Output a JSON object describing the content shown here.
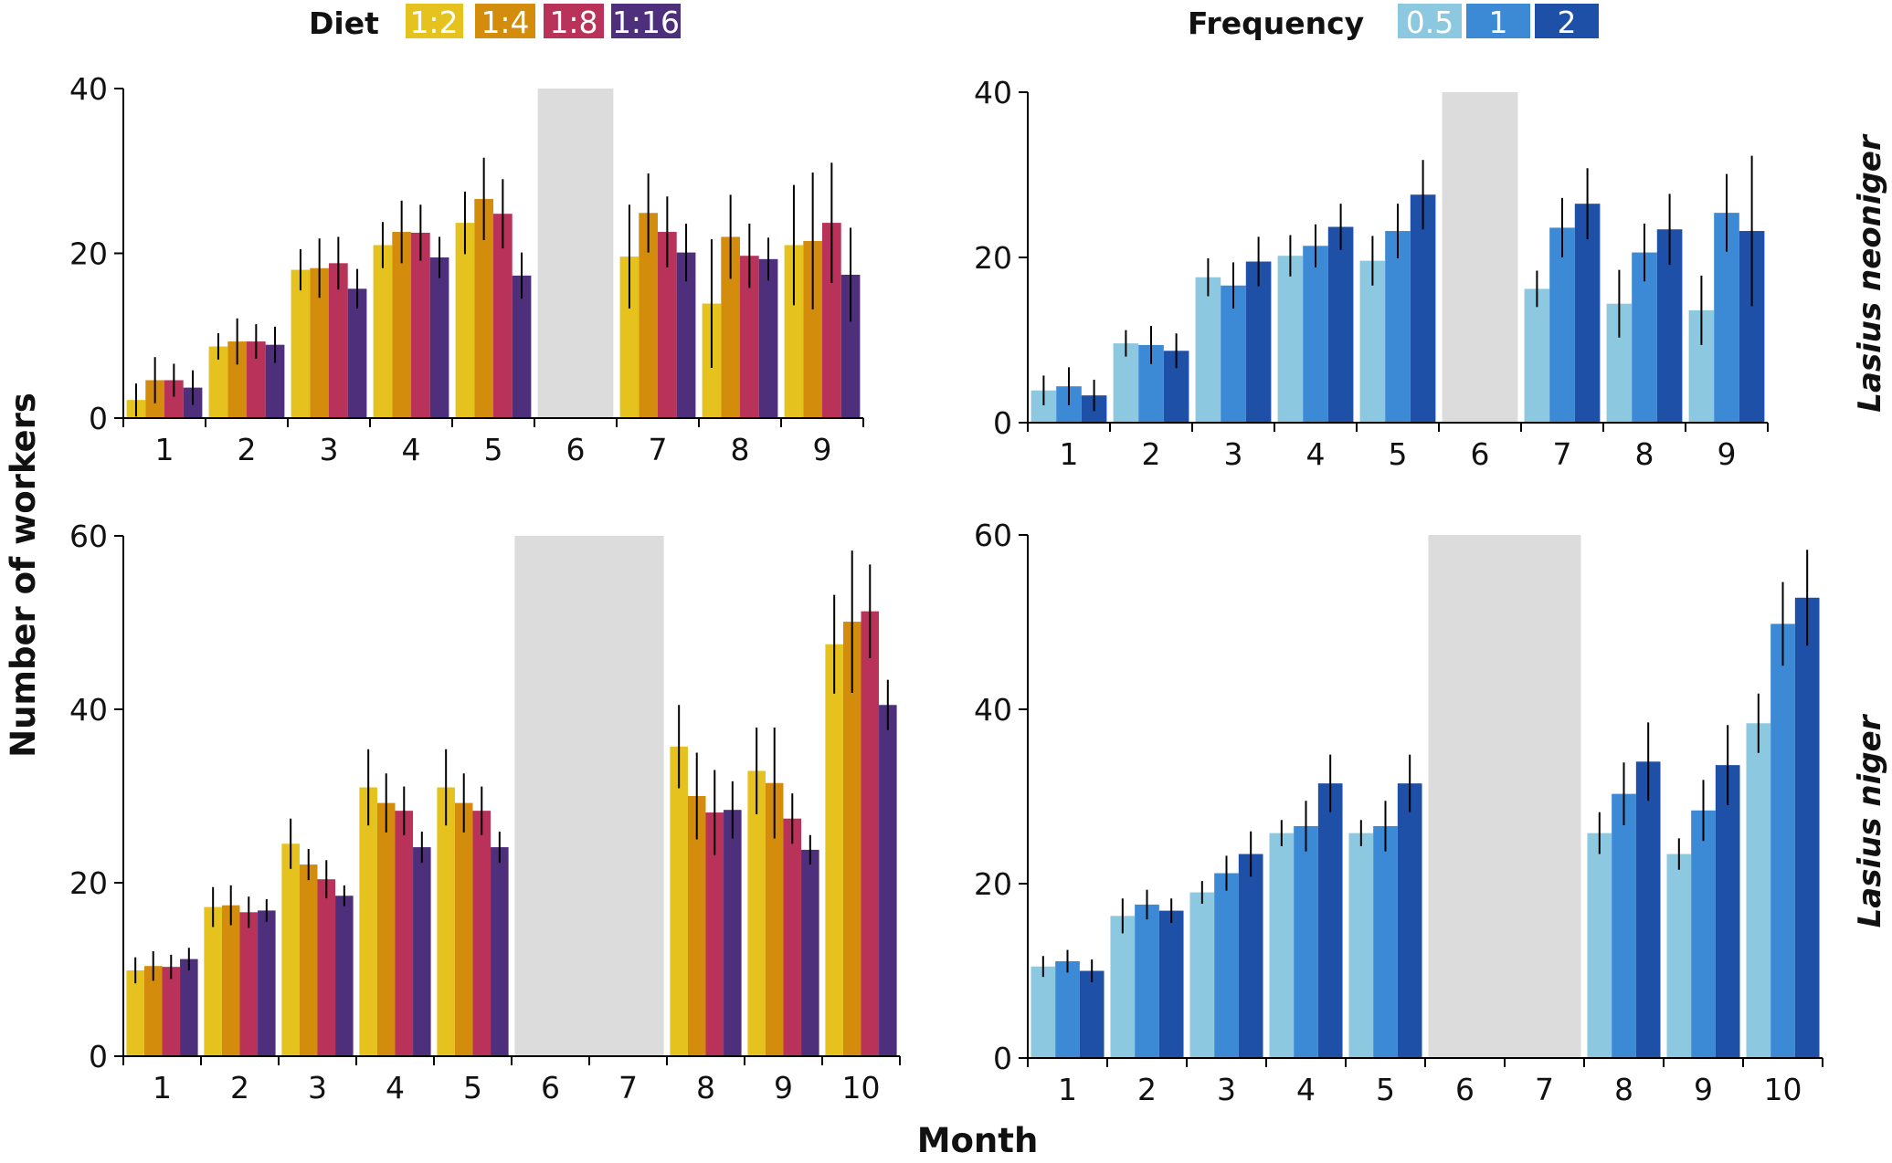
{
  "legends": {
    "diet": {
      "title": "Diet",
      "items": [
        {
          "label": "1:2",
          "color": "#E5C21D"
        },
        {
          "label": "1:4",
          "color": "#D48C0D"
        },
        {
          "label": "1:8",
          "color": "#B8325A"
        },
        {
          "label": "1:16",
          "color": "#4E2F7C"
        }
      ]
    },
    "frequency": {
      "title": "Frequency",
      "items": [
        {
          "label": "0.5",
          "color": "#8CC8E0"
        },
        {
          "label": "1",
          "color": "#3C8AD6"
        },
        {
          "label": "2",
          "color": "#1F50A8"
        }
      ]
    }
  },
  "ylabel": "Number of workers",
  "xlabel": "Month",
  "row_labels": [
    "Lasius neoniger",
    "Lasius niger"
  ],
  "missing_color": "#DCDCDC",
  "chart_data": [
    {
      "type": "bar",
      "categories": [
        "1",
        "2",
        "3",
        "4",
        "5",
        "6",
        "7",
        "8",
        "9"
      ],
      "missing_months": [
        "6"
      ],
      "ylim": [
        0,
        40
      ],
      "yticks": [
        0,
        20,
        40
      ],
      "series": [
        {
          "name": "1:2",
          "color": "#E5C21D",
          "values": [
            2.2,
            8.7,
            18.0,
            21.0,
            23.7,
            null,
            19.6,
            13.9,
            21.0
          ],
          "errors": [
            2.0,
            1.6,
            2.5,
            2.8,
            3.8,
            null,
            6.3,
            7.8,
            7.3
          ]
        },
        {
          "name": "1:4",
          "color": "#D48C0D",
          "values": [
            4.6,
            9.3,
            18.2,
            22.6,
            26.6,
            null,
            24.9,
            22.0,
            21.5
          ],
          "errors": [
            2.8,
            2.8,
            3.6,
            3.8,
            5.0,
            null,
            4.8,
            5.1,
            8.3
          ]
        },
        {
          "name": "1:8",
          "color": "#B8325A",
          "values": [
            4.6,
            9.3,
            18.8,
            22.5,
            24.8,
            null,
            22.6,
            19.7,
            23.7
          ],
          "errors": [
            2.0,
            2.1,
            3.2,
            3.4,
            4.2,
            null,
            4.3,
            3.9,
            7.3
          ]
        },
        {
          "name": "1:16",
          "color": "#4E2F7C",
          "values": [
            3.7,
            8.9,
            15.7,
            19.5,
            17.3,
            null,
            20.1,
            19.3,
            17.4
          ],
          "errors": [
            2.1,
            2.2,
            2.4,
            2.5,
            2.8,
            null,
            3.5,
            2.6,
            5.7
          ]
        }
      ]
    },
    {
      "type": "bar",
      "categories": [
        "1",
        "2",
        "3",
        "4",
        "5",
        "6",
        "7",
        "8",
        "9"
      ],
      "missing_months": [
        "6"
      ],
      "ylim": [
        0,
        40
      ],
      "yticks": [
        0,
        20,
        40
      ],
      "series": [
        {
          "name": "0.5",
          "color": "#8CC8E0",
          "values": [
            3.9,
            9.6,
            17.6,
            20.2,
            19.6,
            null,
            16.2,
            14.4,
            13.6
          ],
          "errors": [
            1.8,
            1.6,
            2.3,
            2.5,
            3.0,
            null,
            2.2,
            4.1,
            4.2
          ]
        },
        {
          "name": "1",
          "color": "#3C8AD6",
          "values": [
            4.4,
            9.4,
            16.6,
            21.4,
            23.2,
            null,
            23.6,
            20.6,
            25.4
          ],
          "errors": [
            2.3,
            2.3,
            2.8,
            2.6,
            3.3,
            null,
            3.6,
            3.5,
            4.7
          ]
        },
        {
          "name": "2",
          "color": "#1F50A8",
          "values": [
            3.3,
            8.7,
            19.5,
            23.7,
            27.6,
            null,
            26.5,
            23.4,
            23.2
          ],
          "errors": [
            1.9,
            2.1,
            3.0,
            2.8,
            4.2,
            null,
            4.3,
            4.3,
            9.1
          ]
        }
      ]
    },
    {
      "type": "bar",
      "categories": [
        "1",
        "2",
        "3",
        "4",
        "5",
        "6",
        "7",
        "8",
        "9",
        "10"
      ],
      "missing_months": [
        "6",
        "7"
      ],
      "ylim": [
        0,
        60
      ],
      "yticks": [
        0,
        20,
        40,
        60
      ],
      "series": [
        {
          "name": "1:2",
          "color": "#E5C21D",
          "values": [
            9.9,
            17.2,
            24.5,
            31.0,
            31.0,
            null,
            null,
            35.7,
            32.9,
            47.5
          ],
          "errors": [
            1.5,
            2.3,
            2.9,
            4.4,
            4.4,
            null,
            null,
            4.8,
            5.0,
            5.7
          ]
        },
        {
          "name": "1:4",
          "color": "#D48C0D",
          "values": [
            10.4,
            17.4,
            22.1,
            29.2,
            29.2,
            null,
            null,
            30.0,
            31.5,
            50.1
          ],
          "errors": [
            1.7,
            2.3,
            1.8,
            3.4,
            3.4,
            null,
            null,
            5.0,
            6.4,
            8.2
          ]
        },
        {
          "name": "1:8",
          "color": "#B8325A",
          "values": [
            10.3,
            16.6,
            20.4,
            28.3,
            28.3,
            null,
            null,
            28.1,
            27.4,
            51.3
          ],
          "errors": [
            1.4,
            1.8,
            2.2,
            2.8,
            2.8,
            null,
            null,
            4.9,
            2.9,
            5.4
          ]
        },
        {
          "name": "1:16",
          "color": "#4E2F7C",
          "values": [
            11.2,
            16.8,
            18.5,
            24.1,
            24.1,
            null,
            null,
            28.4,
            23.8,
            40.5
          ],
          "errors": [
            1.3,
            1.3,
            1.2,
            1.8,
            1.8,
            null,
            null,
            3.3,
            1.7,
            2.9
          ]
        }
      ]
    },
    {
      "type": "bar",
      "categories": [
        "1",
        "2",
        "3",
        "4",
        "5",
        "6",
        "7",
        "8",
        "9",
        "10"
      ],
      "missing_months": [
        "6",
        "7"
      ],
      "ylim": [
        0,
        60
      ],
      "yticks": [
        0,
        20,
        40,
        60
      ],
      "series": [
        {
          "name": "0.5",
          "color": "#8CC8E0",
          "values": [
            10.5,
            16.3,
            19.0,
            25.8,
            25.8,
            null,
            null,
            25.8,
            23.4,
            38.4
          ],
          "errors": [
            1.2,
            2.0,
            1.3,
            1.5,
            1.5,
            null,
            null,
            2.4,
            1.8,
            3.4
          ]
        },
        {
          "name": "1",
          "color": "#3C8AD6",
          "values": [
            11.1,
            17.6,
            21.2,
            26.6,
            26.6,
            null,
            null,
            30.3,
            28.4,
            49.8
          ],
          "errors": [
            1.3,
            1.7,
            2.0,
            2.9,
            2.9,
            null,
            null,
            3.6,
            3.5,
            4.8
          ]
        },
        {
          "name": "2",
          "color": "#1F50A8",
          "values": [
            10.0,
            16.9,
            23.4,
            31.5,
            31.5,
            null,
            null,
            34.0,
            33.6,
            52.8
          ],
          "errors": [
            1.3,
            1.4,
            2.6,
            3.3,
            3.3,
            null,
            null,
            4.5,
            4.6,
            5.5
          ]
        }
      ]
    }
  ]
}
